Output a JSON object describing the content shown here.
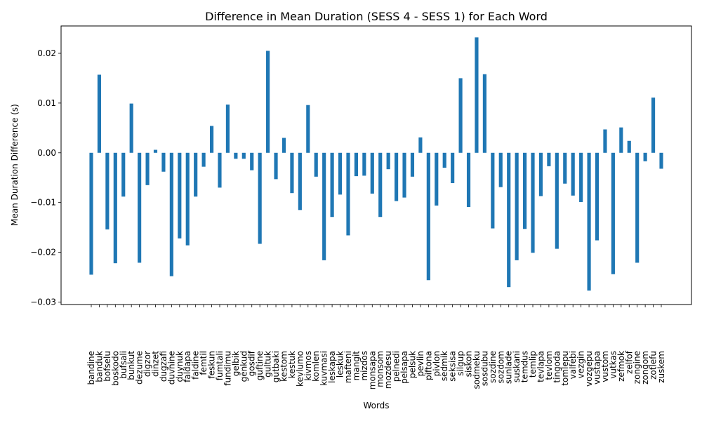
{
  "chart_data": {
    "type": "bar",
    "title": "Difference in Mean Duration (SESS 4 - SESS 1) for Each Word",
    "xlabel": "Words",
    "ylabel": "Mean Duration Difference (s)",
    "ylim": [
      -0.0305,
      0.0255
    ],
    "yticks": [
      -0.03,
      -0.02,
      -0.01,
      0.0,
      0.01,
      0.02
    ],
    "ytick_labels": [
      "−0.03",
      "−0.02",
      "−0.01",
      "0.00",
      "0.01",
      "0.02"
    ],
    "bar_color": "#1f77b4",
    "grid": false,
    "legend": "none",
    "categories": [
      "bandine",
      "banduk",
      "bofselu",
      "boskodo",
      "bufsali",
      "bunkut",
      "dezume",
      "digzor",
      "dinzet",
      "dugzafi",
      "duvhine",
      "duynuk",
      "faldapa",
      "faldine",
      "femtil",
      "feskun",
      "fumtali",
      "fundimu",
      "gelbik",
      "genkud",
      "gosdif",
      "guftine",
      "gultuk",
      "gutbaki",
      "kestom",
      "kestuk",
      "kevlumo",
      "kivmos",
      "komlen",
      "kuvmasi",
      "leskapa",
      "leskuk",
      "mafteni",
      "mangit",
      "mizdos",
      "monsapa",
      "monsom",
      "mozdesu",
      "pelnedi",
      "pelsapa",
      "pelsuk",
      "pevlin",
      "piftona",
      "pivlon",
      "sedmik",
      "seksisa",
      "silgup",
      "siskon",
      "sodmeku",
      "sosdubu",
      "sozdine",
      "sozdom",
      "sunlade",
      "suskani",
      "temdus",
      "temlip",
      "tevlapa",
      "tevlom",
      "tingoda",
      "tomlepu",
      "valfebi",
      "vezgin",
      "vozgepu",
      "vustapa",
      "vustom",
      "vutkas",
      "zefmok",
      "zelfof",
      "zongine",
      "zongom",
      "zotlefu",
      "zuskem"
    ],
    "values": [
      -0.0245,
      0.0157,
      -0.0154,
      -0.0222,
      -0.0088,
      0.0099,
      -0.0221,
      -0.0065,
      0.0006,
      -0.0038,
      -0.0248,
      -0.0172,
      -0.0186,
      -0.0088,
      -0.0028,
      0.0054,
      -0.007,
      0.0097,
      -0.0012,
      -0.0012,
      -0.0035,
      -0.0183,
      0.0205,
      -0.0053,
      0.003,
      -0.0081,
      -0.0115,
      0.0096,
      -0.0048,
      -0.0216,
      -0.0129,
      -0.0084,
      -0.0166,
      -0.0047,
      -0.0046,
      -0.0082,
      -0.0129,
      -0.0033,
      -0.0097,
      -0.009,
      -0.0048,
      0.0031,
      -0.0256,
      -0.0106,
      -0.003,
      -0.0061,
      0.015,
      -0.0109,
      0.0232,
      0.0158,
      -0.0152,
      -0.0069,
      -0.027,
      -0.0216,
      -0.0153,
      -0.0201,
      -0.0087,
      -0.0027,
      -0.0193,
      -0.0062,
      -0.0086,
      -0.0099,
      -0.0277,
      -0.0176,
      0.0047,
      -0.0244,
      0.0051,
      0.0024,
      -0.0221,
      -0.0017,
      0.0111,
      -0.0032
    ]
  }
}
